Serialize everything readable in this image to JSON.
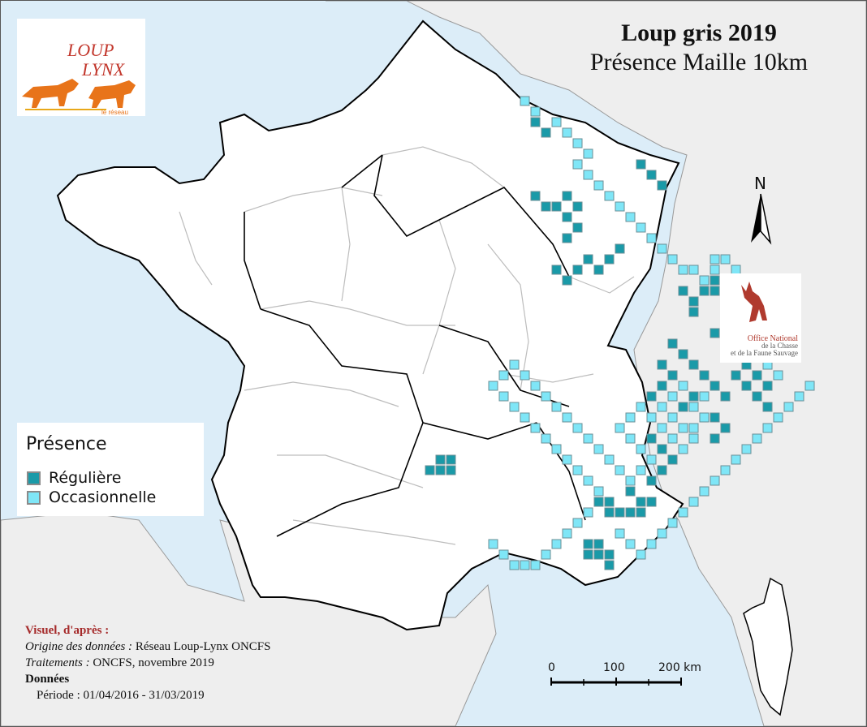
{
  "title": {
    "line1": "Loup gris 2019",
    "line2": "Présence Maille 10km"
  },
  "logo_lynx": {
    "text_loup": "LOUP",
    "text_lynx": "LYNX",
    "tagline": "le réseau",
    "colors": {
      "orange": "#e8741a",
      "red": "#c2362b"
    }
  },
  "logo_oncfs": {
    "line1": "Office National",
    "line2": "de la Chasse",
    "line3": "et de la Faune Sauvage",
    "color": "#b03a2e"
  },
  "north_arrow": {
    "label": "N"
  },
  "legend": {
    "title": "Présence",
    "items": [
      {
        "label": "Régulière",
        "color": "#1a9aa8"
      },
      {
        "label": "Occasionnelle",
        "color": "#7fe6f7"
      }
    ]
  },
  "credits": {
    "heading": "Visuel, d'après :",
    "source_label": "Origine des données :",
    "source_value": " Réseau Loup-Lynx ONCFS",
    "processing_label": "Traitements :",
    "processing_value": " ONCFS, novembre 2019",
    "data_heading": "Données",
    "period": "Période : 01/04/2016 - 31/03/2019"
  },
  "scale_bar": {
    "labels": [
      "0",
      "100",
      "200 km"
    ]
  },
  "colors": {
    "sea": "#dcedf8",
    "land": "#ffffff",
    "neighbor": "#eeeeee",
    "border": "#000000",
    "dept_border": "#bdbdbd",
    "regular": "#1a9aa8",
    "occasional": "#7fe6f7"
  },
  "presence": {
    "regular": [
      [
        11,
        41
      ],
      [
        12,
        40
      ],
      [
        12,
        41
      ],
      [
        13,
        40
      ],
      [
        13,
        41
      ],
      [
        21,
        8
      ],
      [
        22,
        9
      ],
      [
        21,
        15
      ],
      [
        22,
        16
      ],
      [
        23,
        16
      ],
      [
        24,
        15
      ],
      [
        25,
        16
      ],
      [
        24,
        17
      ],
      [
        25,
        18
      ],
      [
        24,
        19
      ],
      [
        23,
        22
      ],
      [
        24,
        23
      ],
      [
        25,
        22
      ],
      [
        26,
        21
      ],
      [
        27,
        22
      ],
      [
        28,
        21
      ],
      [
        29,
        20
      ],
      [
        31,
        12
      ],
      [
        32,
        13
      ],
      [
        33,
        14
      ],
      [
        35,
        24
      ],
      [
        36,
        25
      ],
      [
        36,
        26
      ],
      [
        37,
        24
      ],
      [
        38,
        23
      ],
      [
        38,
        24
      ],
      [
        39,
        25
      ],
      [
        40,
        26
      ],
      [
        41,
        27
      ],
      [
        40,
        28
      ],
      [
        38,
        28
      ],
      [
        39,
        29
      ],
      [
        40,
        30
      ],
      [
        41,
        31
      ],
      [
        42,
        32
      ],
      [
        43,
        33
      ],
      [
        40,
        32
      ],
      [
        41,
        33
      ],
      [
        42,
        34
      ],
      [
        43,
        35
      ],
      [
        38,
        36
      ],
      [
        39,
        37
      ],
      [
        38,
        38
      ],
      [
        37,
        32
      ],
      [
        38,
        33
      ],
      [
        39,
        34
      ],
      [
        34,
        29
      ],
      [
        35,
        30
      ],
      [
        36,
        31
      ],
      [
        36,
        34
      ],
      [
        35,
        35
      ],
      [
        32,
        38
      ],
      [
        33,
        39
      ],
      [
        34,
        40
      ],
      [
        33,
        41
      ],
      [
        32,
        42
      ],
      [
        30,
        43
      ],
      [
        31,
        44
      ],
      [
        32,
        44
      ],
      [
        29,
        45
      ],
      [
        30,
        45
      ],
      [
        31,
        45
      ],
      [
        27,
        44
      ],
      [
        28,
        44
      ],
      [
        28,
        45
      ],
      [
        26,
        48
      ],
      [
        27,
        48
      ],
      [
        26,
        49
      ],
      [
        27,
        49
      ],
      [
        28,
        49
      ],
      [
        28,
        50
      ],
      [
        33,
        31
      ],
      [
        34,
        32
      ],
      [
        33,
        33
      ],
      [
        32,
        34
      ]
    ],
    "occasional": [
      [
        20,
        6
      ],
      [
        21,
        7
      ],
      [
        23,
        8
      ],
      [
        24,
        9
      ],
      [
        25,
        10
      ],
      [
        26,
        11
      ],
      [
        25,
        12
      ],
      [
        26,
        13
      ],
      [
        27,
        14
      ],
      [
        28,
        15
      ],
      [
        29,
        16
      ],
      [
        30,
        17
      ],
      [
        31,
        18
      ],
      [
        32,
        19
      ],
      [
        33,
        20
      ],
      [
        34,
        21
      ],
      [
        35,
        22
      ],
      [
        36,
        22
      ],
      [
        37,
        23
      ],
      [
        38,
        22
      ],
      [
        39,
        23
      ],
      [
        38,
        21
      ],
      [
        39,
        21
      ],
      [
        40,
        22
      ],
      [
        41,
        23
      ],
      [
        40,
        24
      ],
      [
        41,
        25
      ],
      [
        42,
        26
      ],
      [
        41,
        29
      ],
      [
        42,
        30
      ],
      [
        43,
        31
      ],
      [
        44,
        32
      ],
      [
        42,
        28
      ],
      [
        43,
        29
      ],
      [
        44,
        30
      ],
      [
        37,
        34
      ],
      [
        36,
        35
      ],
      [
        37,
        36
      ],
      [
        36,
        37
      ],
      [
        35,
        33
      ],
      [
        34,
        34
      ],
      [
        33,
        35
      ],
      [
        34,
        36
      ],
      [
        35,
        37
      ],
      [
        36,
        38
      ],
      [
        35,
        39
      ],
      [
        34,
        38
      ],
      [
        33,
        37
      ],
      [
        32,
        36
      ],
      [
        31,
        35
      ],
      [
        30,
        36
      ],
      [
        29,
        37
      ],
      [
        30,
        38
      ],
      [
        31,
        39
      ],
      [
        32,
        40
      ],
      [
        31,
        41
      ],
      [
        30,
        42
      ],
      [
        29,
        41
      ],
      [
        28,
        40
      ],
      [
        27,
        39
      ],
      [
        26,
        38
      ],
      [
        25,
        37
      ],
      [
        24,
        36
      ],
      [
        23,
        35
      ],
      [
        22,
        34
      ],
      [
        21,
        33
      ],
      [
        20,
        32
      ],
      [
        19,
        31
      ],
      [
        18,
        32
      ],
      [
        17,
        33
      ],
      [
        18,
        34
      ],
      [
        19,
        35
      ],
      [
        20,
        36
      ],
      [
        21,
        37
      ],
      [
        22,
        38
      ],
      [
        23,
        39
      ],
      [
        24,
        40
      ],
      [
        25,
        41
      ],
      [
        26,
        42
      ],
      [
        27,
        43
      ],
      [
        26,
        45
      ],
      [
        25,
        46
      ],
      [
        24,
        47
      ],
      [
        23,
        48
      ],
      [
        22,
        49
      ],
      [
        21,
        50
      ],
      [
        20,
        50
      ],
      [
        19,
        50
      ],
      [
        18,
        49
      ],
      [
        17,
        48
      ],
      [
        29,
        47
      ],
      [
        30,
        48
      ],
      [
        31,
        49
      ],
      [
        32,
        48
      ],
      [
        33,
        47
      ],
      [
        34,
        46
      ],
      [
        35,
        45
      ],
      [
        36,
        44
      ],
      [
        37,
        43
      ],
      [
        38,
        42
      ],
      [
        39,
        41
      ],
      [
        40,
        40
      ],
      [
        41,
        39
      ],
      [
        42,
        38
      ],
      [
        43,
        37
      ],
      [
        44,
        36
      ],
      [
        45,
        35
      ],
      [
        46,
        34
      ],
      [
        47,
        33
      ]
    ]
  }
}
